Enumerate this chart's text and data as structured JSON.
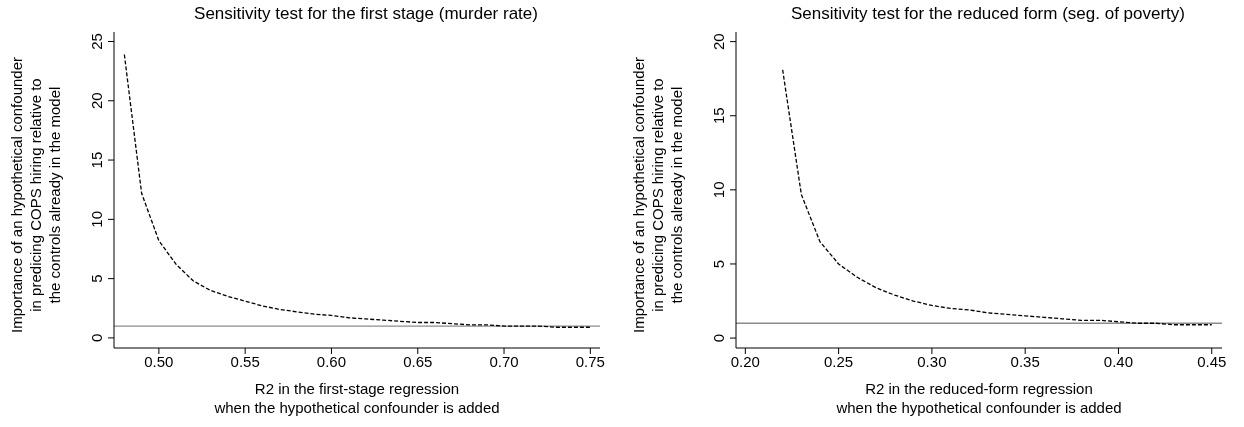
{
  "chart_data": [
    {
      "type": "line",
      "title": "Sensitivity test for the first stage (murder rate)",
      "xlabel": "R2 in the first-stage regression\nwhen the hypothetical confounder is added",
      "ylabel": "Importance of an hypothetical confounder\nin predicing COPS hiring relative to\nthe controls already in the model",
      "xlim": [
        0.474,
        0.7556
      ],
      "xticks": [
        {
          "value": 0.5,
          "label": "0.50"
        },
        {
          "value": 0.55,
          "label": "0.55"
        },
        {
          "value": 0.6,
          "label": "0.60"
        },
        {
          "value": 0.65,
          "label": "0.65"
        },
        {
          "value": 0.7,
          "label": "0.70"
        },
        {
          "value": 0.75,
          "label": "0.75"
        }
      ],
      "ylim": [
        -0.85,
        25.8
      ],
      "yticks": [
        0,
        5,
        10,
        15,
        20,
        25
      ],
      "series": [
        {
          "color": "#000000",
          "line_style": "dashed",
          "marker": "none",
          "x": [
            0.48,
            0.49,
            0.5,
            0.51,
            0.52,
            0.53,
            0.54,
            0.55,
            0.56,
            0.57,
            0.58,
            0.59,
            0.6,
            0.61,
            0.62,
            0.63,
            0.64,
            0.65,
            0.66,
            0.67,
            0.68,
            0.69,
            0.7,
            0.71,
            0.72,
            0.73,
            0.74,
            0.75
          ],
          "values": [
            23.9,
            12.2,
            8.2,
            6.2,
            4.8,
            4.0,
            3.5,
            3.1,
            2.7,
            2.4,
            2.2,
            2.0,
            1.9,
            1.7,
            1.6,
            1.5,
            1.4,
            1.3,
            1.3,
            1.2,
            1.1,
            1.1,
            1.0,
            1.0,
            1.0,
            0.9,
            0.9,
            0.9
          ]
        }
      ],
      "ref_lines": [
        {
          "axis": "y",
          "value": 1,
          "color": "#8c8c8c"
        }
      ]
    },
    {
      "type": "line",
      "title": "Sensitivity test for the reduced form (seg. of poverty)",
      "xlabel": "R2 in the reduced-form regression\nwhen the hypothetical confounder is added",
      "ylabel": "Importance of an hypothetical confounder\nin predicing COPS hiring relative to\nthe controls already in the model",
      "xlim": [
        0.195,
        0.4555
      ],
      "xticks": [
        {
          "value": 0.2,
          "label": "0.20"
        },
        {
          "value": 0.25,
          "label": "0.25"
        },
        {
          "value": 0.3,
          "label": "0.30"
        },
        {
          "value": 0.35,
          "label": "0.35"
        },
        {
          "value": 0.4,
          "label": "0.40"
        },
        {
          "value": 0.45,
          "label": "0.45"
        }
      ],
      "ylim": [
        -0.67,
        20.65
      ],
      "yticks": [
        0,
        5,
        10,
        15,
        20
      ],
      "series": [
        {
          "color": "#000000",
          "line_style": "dashed",
          "marker": "none",
          "x": [
            0.22,
            0.23,
            0.24,
            0.25,
            0.26,
            0.27,
            0.28,
            0.29,
            0.3,
            0.31,
            0.32,
            0.33,
            0.34,
            0.35,
            0.36,
            0.37,
            0.38,
            0.39,
            0.4,
            0.41,
            0.42,
            0.43,
            0.44,
            0.45
          ],
          "values": [
            18.1,
            9.7,
            6.5,
            5.0,
            4.1,
            3.4,
            2.9,
            2.5,
            2.2,
            2.0,
            1.9,
            1.7,
            1.6,
            1.5,
            1.4,
            1.3,
            1.2,
            1.2,
            1.1,
            1.0,
            1.0,
            0.9,
            0.9,
            0.9
          ]
        }
      ],
      "ref_lines": [
        {
          "axis": "y",
          "value": 1,
          "color": "#8c8c8c"
        }
      ]
    }
  ]
}
